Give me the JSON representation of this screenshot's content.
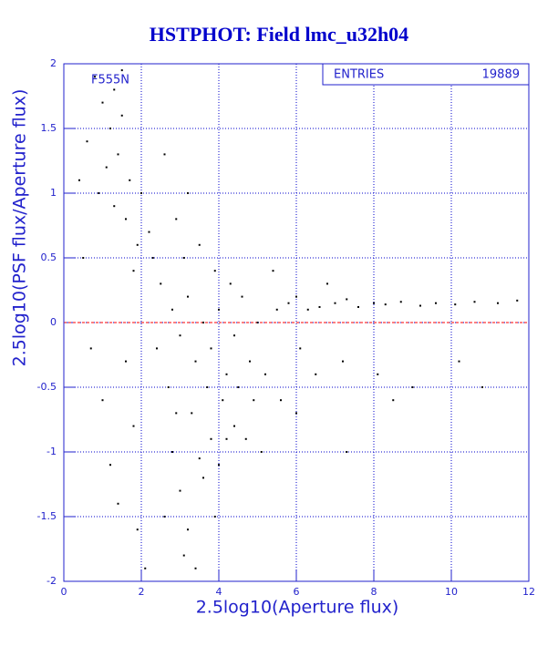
{
  "chart_data": {
    "type": "scatter",
    "title": "HSTPHOT: Field lmc_u32h04",
    "x_label": "2.5log10(Aperture flux)",
    "y_label": "2.5log10(PSF flux/Aperture flux)",
    "annotation": "F555N",
    "stats": {
      "label": "ENTRIES",
      "value": 19889
    },
    "color": "#000000",
    "grid": true,
    "grid_color": "#0000cc",
    "axis_color": "#2222cc",
    "reference_line": {
      "y": 0,
      "color": "#ff0000"
    },
    "xlim": [
      0,
      12
    ],
    "xticks": [
      0,
      2,
      4,
      6,
      8,
      10,
      12
    ],
    "ylim": [
      -2,
      2
    ],
    "yticks": [
      -2,
      -1.5,
      -1,
      -0.5,
      0,
      0.5,
      1,
      1.5,
      2
    ],
    "x": [
      0.8,
      1.0,
      1.2,
      1.4,
      1.1,
      1.5,
      0.6,
      0.9,
      1.3,
      1.7,
      1.6,
      1.9,
      2.0,
      1.8,
      2.2,
      0.5,
      0.7,
      1.0,
      1.2,
      1.4,
      1.6,
      1.8,
      1.9,
      2.1,
      1.3,
      1.5,
      0.4,
      2.5,
      2.8,
      3.0,
      3.2,
      3.4,
      3.6,
      3.8,
      4.0,
      4.2,
      4.4,
      4.6,
      4.8,
      5.0,
      3.1,
      3.5,
      3.9,
      4.3,
      2.7,
      3.3,
      3.7,
      4.1,
      4.5,
      4.9,
      5.2,
      2.9,
      3.2,
      2.6,
      2.4,
      2.3,
      5.5,
      5.8,
      6.0,
      6.3,
      6.6,
      7.0,
      7.3,
      7.6,
      8.0,
      8.3,
      8.7,
      9.2,
      9.6,
      10.1,
      10.6,
      11.2,
      11.7,
      5.4,
      6.1,
      6.5,
      7.2,
      8.1,
      9.0,
      10.2,
      10.8,
      6.8,
      5.6,
      8.5,
      2.8,
      3.0,
      3.2,
      3.4,
      3.6,
      3.8,
      2.6,
      3.1,
      3.5,
      4.0,
      4.2,
      3.9,
      2.9,
      4.4,
      4.7,
      5.1,
      6.0,
      7.3
    ],
    "values": [
      1.9,
      1.7,
      1.5,
      1.3,
      1.2,
      1.6,
      1.4,
      1.0,
      0.9,
      1.1,
      0.8,
      0.6,
      1.0,
      0.4,
      0.7,
      0.5,
      -0.2,
      -0.6,
      -1.1,
      -1.4,
      -0.3,
      -0.8,
      -1.6,
      -1.9,
      1.8,
      1.95,
      1.1,
      0.3,
      0.1,
      -0.1,
      0.2,
      -0.3,
      0.0,
      -0.2,
      0.1,
      -0.4,
      -0.1,
      0.2,
      -0.3,
      0.0,
      0.5,
      0.6,
      0.4,
      0.3,
      -0.5,
      -0.7,
      -0.5,
      -0.6,
      -0.5,
      -0.6,
      -0.4,
      0.8,
      1.0,
      1.3,
      -0.2,
      0.5,
      0.1,
      0.15,
      0.2,
      0.1,
      0.12,
      0.15,
      0.18,
      0.12,
      0.15,
      0.14,
      0.16,
      0.13,
      0.15,
      0.14,
      0.16,
      0.15,
      0.17,
      0.4,
      -0.2,
      -0.4,
      -0.3,
      -0.4,
      -0.5,
      -0.3,
      -0.5,
      0.3,
      -0.6,
      -0.6,
      -1.0,
      -1.3,
      -1.6,
      -1.9,
      -1.2,
      -0.9,
      -1.5,
      -1.8,
      -1.05,
      -1.1,
      -0.9,
      -1.5,
      -0.7,
      -0.8,
      -0.9,
      -1.0,
      -0.7,
      -1.0
    ]
  }
}
